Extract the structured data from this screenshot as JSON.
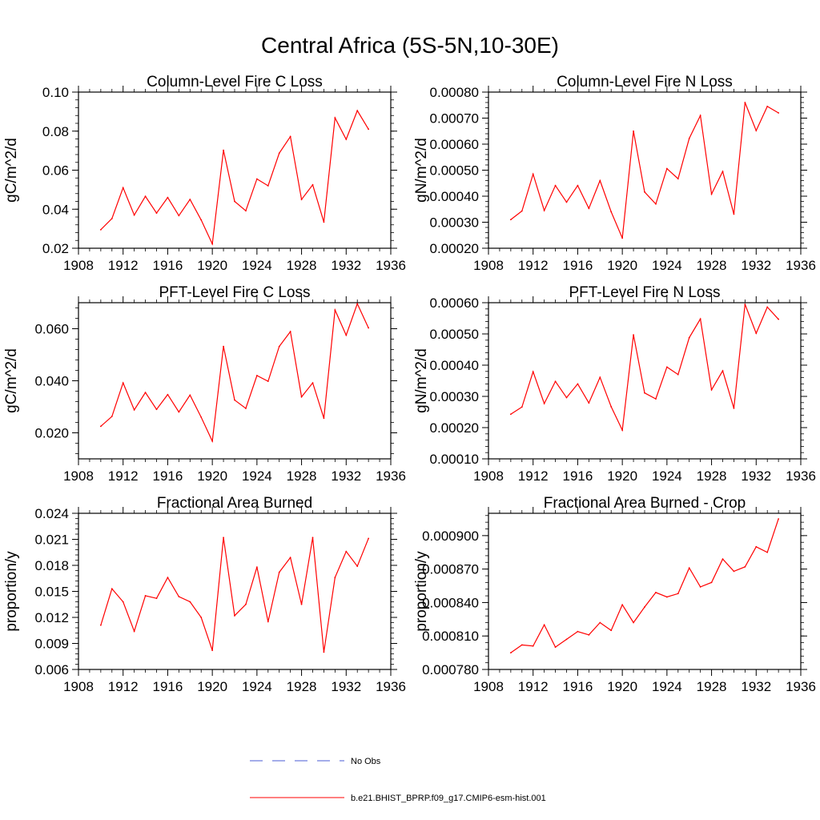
{
  "figure": {
    "title": "Central Africa (5S-5N,10-30E)",
    "line_color": "#ff0000",
    "obs_color": "#4a5bd6"
  },
  "legend": {
    "entries": [
      {
        "label": "No Obs",
        "style": "dashed",
        "color": "#4a5bd6"
      },
      {
        "label": "b.e21.BHIST_BPRP.f09_g17.CMIP6-esm-hist.001",
        "style": "solid",
        "color": "#ff0000"
      }
    ]
  },
  "chart_data": [
    {
      "type": "line",
      "title": "Column-Level Fire C Loss",
      "ylabel": "gC/m^2/d",
      "xlim": [
        1908,
        1936
      ],
      "ylim": [
        0.02,
        0.1
      ],
      "xticks": [
        1908,
        1912,
        1916,
        1920,
        1924,
        1928,
        1932,
        1936
      ],
      "xtick_labels": [
        "1908",
        "1912",
        "1916",
        "1920",
        "1924",
        "1928",
        "1932",
        "1936"
      ],
      "yticks": [
        0.02,
        0.04,
        0.06,
        0.08,
        0.1
      ],
      "ytick_labels": [
        "0.02",
        "0.04",
        "0.06",
        "0.08",
        "0.10"
      ],
      "grid": false,
      "x": [
        1910,
        1911,
        1912,
        1913,
        1914,
        1915,
        1916,
        1917,
        1918,
        1919,
        1920,
        1921,
        1922,
        1923,
        1924,
        1925,
        1926,
        1927,
        1928,
        1929,
        1930,
        1931,
        1932,
        1933,
        1934
      ],
      "series": [
        {
          "name": "b.e21.BHIST_BPRP.f09_g17.CMIP6-esm-hist.001",
          "values": [
            0.0295,
            0.0352,
            0.051,
            0.037,
            0.0466,
            0.038,
            0.046,
            0.0367,
            0.045,
            0.0345,
            0.0222,
            0.0702,
            0.044,
            0.0392,
            0.0555,
            0.052,
            0.0687,
            0.0772,
            0.045,
            0.0525,
            0.0334,
            0.0868,
            0.0758,
            0.0905,
            0.081
          ]
        }
      ]
    },
    {
      "type": "line",
      "title": "Column-Level Fire N Loss",
      "ylabel": "gN/m^2/d",
      "xlim": [
        1908,
        1936
      ],
      "ylim": [
        0.0002,
        0.0008
      ],
      "xticks": [
        1908,
        1912,
        1916,
        1920,
        1924,
        1928,
        1932,
        1936
      ],
      "xtick_labels": [
        "1908",
        "1912",
        "1916",
        "1920",
        "1924",
        "1928",
        "1932",
        "1936"
      ],
      "yticks": [
        0.0002,
        0.0003,
        0.0004,
        0.0005,
        0.0006,
        0.0007,
        0.0008
      ],
      "ytick_labels": [
        "0.00020",
        "0.00030",
        "0.00040",
        "0.00050",
        "0.00060",
        "0.00070",
        "0.00080"
      ],
      "grid": false,
      "x": [
        1910,
        1911,
        1912,
        1913,
        1914,
        1915,
        1916,
        1917,
        1918,
        1919,
        1920,
        1921,
        1922,
        1923,
        1924,
        1925,
        1926,
        1927,
        1928,
        1929,
        1930,
        1931,
        1932,
        1933,
        1934
      ],
      "series": [
        {
          "name": "b.e21.BHIST_BPRP.f09_g17.CMIP6-esm-hist.001",
          "values": [
            0.00031,
            0.000343,
            0.000485,
            0.000345,
            0.000441,
            0.000377,
            0.000441,
            0.000353,
            0.00046,
            0.00034,
            0.000239,
            0.00065,
            0.000416,
            0.00037,
            0.000506,
            0.000467,
            0.000622,
            0.00071,
            0.000408,
            0.000495,
            0.000331,
            0.00076,
            0.000652,
            0.000745,
            0.00072
          ]
        }
      ]
    },
    {
      "type": "line",
      "title": "PFT-Level Fire C Loss",
      "ylabel": "gC/m^2/d",
      "xlim": [
        1908,
        1936
      ],
      "ylim": [
        0.01,
        0.07
      ],
      "xticks": [
        1908,
        1912,
        1916,
        1920,
        1924,
        1928,
        1932,
        1936
      ],
      "xtick_labels": [
        "1908",
        "1912",
        "1916",
        "1920",
        "1924",
        "1928",
        "1932",
        "1936"
      ],
      "yticks": [
        0.02,
        0.04,
        0.06
      ],
      "ytick_labels": [
        "0.020",
        "0.040",
        "0.060"
      ],
      "grid": false,
      "x": [
        1910,
        1911,
        1912,
        1913,
        1914,
        1915,
        1916,
        1917,
        1918,
        1919,
        1920,
        1921,
        1922,
        1923,
        1924,
        1925,
        1926,
        1927,
        1928,
        1929,
        1930,
        1931,
        1932,
        1933,
        1934
      ],
      "series": [
        {
          "name": "b.e21.BHIST_BPRP.f09_g17.CMIP6-esm-hist.001",
          "values": [
            0.0225,
            0.0263,
            0.0392,
            0.0288,
            0.0355,
            0.029,
            0.0347,
            0.028,
            0.0345,
            0.026,
            0.0168,
            0.0532,
            0.0326,
            0.0294,
            0.042,
            0.0398,
            0.0532,
            0.0589,
            0.0338,
            0.0392,
            0.0256,
            0.0672,
            0.0575,
            0.0696,
            0.0603
          ]
        }
      ]
    },
    {
      "type": "line",
      "title": "PFT-Level Fire N Loss",
      "ylabel": "gN/m^2/d",
      "xlim": [
        1908,
        1936
      ],
      "ylim": [
        0.0001,
        0.0006
      ],
      "xticks": [
        1908,
        1912,
        1916,
        1920,
        1924,
        1928,
        1932,
        1936
      ],
      "xtick_labels": [
        "1908",
        "1912",
        "1916",
        "1920",
        "1924",
        "1928",
        "1932",
        "1936"
      ],
      "yticks": [
        0.0001,
        0.0002,
        0.0003,
        0.0004,
        0.0005,
        0.0006
      ],
      "ytick_labels": [
        "0.00010",
        "0.00020",
        "0.00030",
        "0.00040",
        "0.00050",
        "0.00060"
      ],
      "grid": false,
      "x": [
        1910,
        1911,
        1912,
        1913,
        1914,
        1915,
        1916,
        1917,
        1918,
        1919,
        1920,
        1921,
        1922,
        1923,
        1924,
        1925,
        1926,
        1927,
        1928,
        1929,
        1930,
        1931,
        1932,
        1933,
        1934
      ],
      "series": [
        {
          "name": "b.e21.BHIST_BPRP.f09_g17.CMIP6-esm-hist.001",
          "values": [
            0.000243,
            0.000266,
            0.000379,
            0.000277,
            0.000348,
            0.000296,
            0.00034,
            0.000279,
            0.000361,
            0.000267,
            0.000192,
            0.000497,
            0.000311,
            0.000292,
            0.000394,
            0.00037,
            0.000488,
            0.000548,
            0.000321,
            0.000382,
            0.000262,
            0.000595,
            0.000502,
            0.000586,
            0.000547
          ]
        }
      ]
    },
    {
      "type": "line",
      "title": "Fractional Area Burned",
      "ylabel": "proportion/y",
      "xlim": [
        1908,
        1936
      ],
      "ylim": [
        0.006,
        0.024
      ],
      "xticks": [
        1908,
        1912,
        1916,
        1920,
        1924,
        1928,
        1932,
        1936
      ],
      "xtick_labels": [
        "1908",
        "1912",
        "1916",
        "1920",
        "1924",
        "1928",
        "1932",
        "1936"
      ],
      "yticks": [
        0.006,
        0.009,
        0.012,
        0.015,
        0.018,
        0.021,
        0.024
      ],
      "ytick_labels": [
        "0.006",
        "0.009",
        "0.012",
        "0.015",
        "0.018",
        "0.021",
        "0.024"
      ],
      "grid": false,
      "x": [
        1910,
        1911,
        1912,
        1913,
        1914,
        1915,
        1916,
        1917,
        1918,
        1919,
        1920,
        1921,
        1922,
        1923,
        1924,
        1925,
        1926,
        1927,
        1928,
        1929,
        1930,
        1931,
        1932,
        1933,
        1934
      ],
      "series": [
        {
          "name": "b.e21.BHIST_BPRP.f09_g17.CMIP6-esm-hist.001",
          "values": [
            0.0111,
            0.0153,
            0.0138,
            0.0104,
            0.0145,
            0.0142,
            0.0166,
            0.0144,
            0.0138,
            0.012,
            0.0082,
            0.0212,
            0.0122,
            0.0135,
            0.0178,
            0.0115,
            0.0172,
            0.0189,
            0.0135,
            0.0212,
            0.008,
            0.0166,
            0.0196,
            0.0179,
            0.0211
          ]
        }
      ]
    },
    {
      "type": "line",
      "title": "Fractional Area Burned - Crop",
      "ylabel": "proportion/y",
      "xlim": [
        1908,
        1936
      ],
      "ylim": [
        0.00078,
        0.00092
      ],
      "xticks": [
        1908,
        1912,
        1916,
        1920,
        1924,
        1928,
        1932,
        1936
      ],
      "xtick_labels": [
        "1908",
        "1912",
        "1916",
        "1920",
        "1924",
        "1928",
        "1932",
        "1936"
      ],
      "yticks": [
        0.00078,
        0.00081,
        0.00084,
        0.00087,
        0.0009
      ],
      "ytick_labels": [
        "0.000780",
        "0.000810",
        "0.000840",
        "0.000870",
        "0.000900"
      ],
      "grid": false,
      "x": [
        1910,
        1911,
        1912,
        1913,
        1914,
        1915,
        1916,
        1917,
        1918,
        1919,
        1920,
        1921,
        1922,
        1923,
        1924,
        1925,
        1926,
        1927,
        1928,
        1929,
        1930,
        1931,
        1932,
        1933,
        1934
      ],
      "series": [
        {
          "name": "b.e21.BHIST_BPRP.f09_g17.CMIP6-esm-hist.001",
          "values": [
            0.000795,
            0.000802,
            0.000801,
            0.00082,
            0.0008,
            0.000807,
            0.000814,
            0.000811,
            0.000822,
            0.000815,
            0.000838,
            0.000822,
            0.000836,
            0.000849,
            0.000845,
            0.000848,
            0.000871,
            0.000854,
            0.000858,
            0.000879,
            0.000868,
            0.000872,
            0.00089,
            0.000885,
            0.000915
          ]
        }
      ]
    }
  ]
}
